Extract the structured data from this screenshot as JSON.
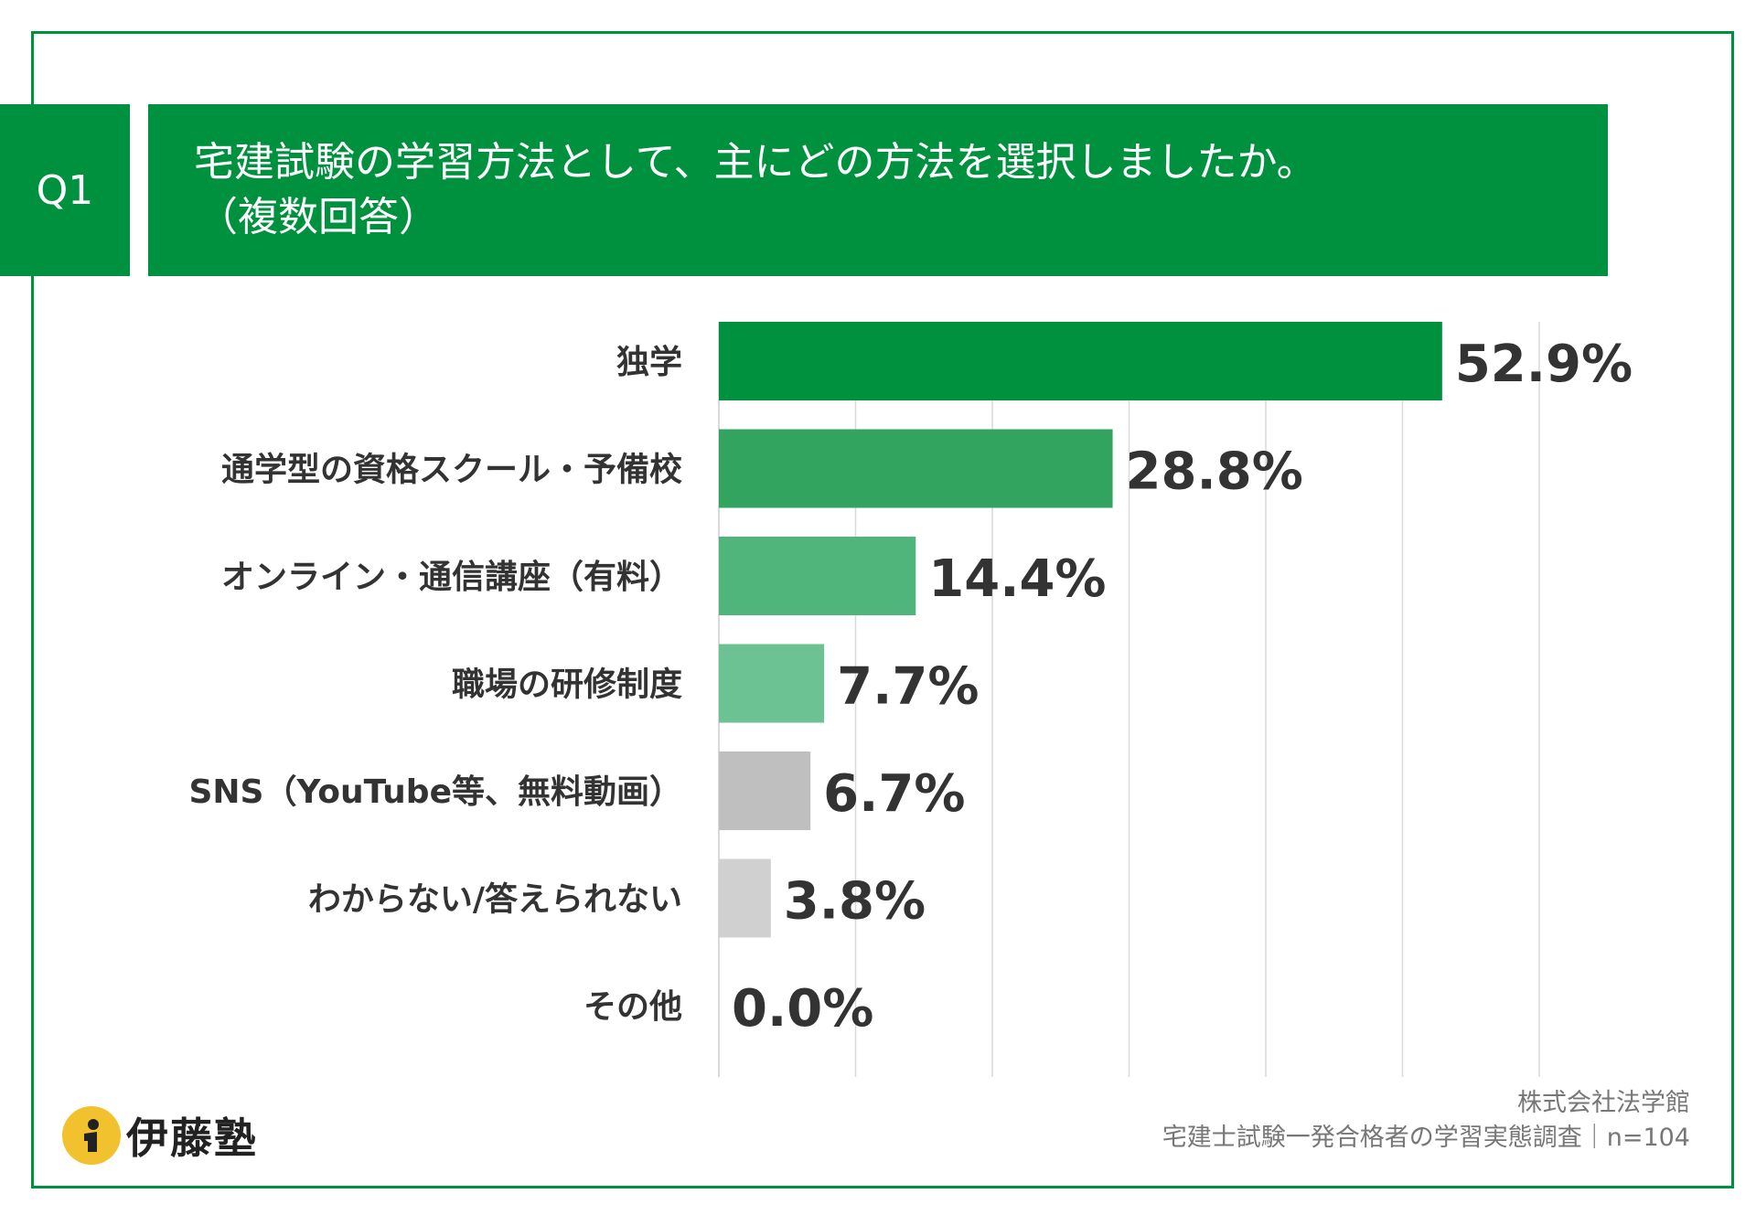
{
  "header": {
    "badge": "Q1",
    "question_line1": "宅建試験の学習方法として、主にどの方法を選択しましたか。",
    "question_line2": "（複数回答）"
  },
  "chart_data": {
    "type": "bar",
    "orientation": "horizontal",
    "title": "宅建試験の学習方法として、主にどの方法を選択しましたか。（複数回答）",
    "categories": [
      "独学",
      "通学型の資格スクール・予備校",
      "オンライン・通信講座（有料）",
      "職場の研修制度",
      "SNS（YouTube等、無料動画）",
      "わからない/答えられない",
      "その他"
    ],
    "values": [
      52.9,
      28.8,
      14.4,
      7.7,
      6.7,
      3.8,
      0.0
    ],
    "value_labels": [
      "52.9%",
      "28.8%",
      "14.4%",
      "7.7%",
      "6.7%",
      "3.8%",
      "0.0%"
    ],
    "bar_colors": [
      "#00913f",
      "#33a460",
      "#4fb57a",
      "#6cc292",
      "#bfbfbf",
      "#d0d0d0",
      "#d9d9d9"
    ],
    "xlim": [
      0,
      60
    ],
    "grid": true,
    "gridline_step": 10,
    "unit": "%"
  },
  "footer": {
    "brand": "伊藤塾",
    "source_line1": "株式会社法学館",
    "source_line2": "宅建士試験一発合格者の学習実態調査｜n=104"
  },
  "colors": {
    "accent": "#00913f",
    "grid": "#d9d9d9",
    "text": "#333333",
    "brand_yellow": "#f2c12e"
  }
}
